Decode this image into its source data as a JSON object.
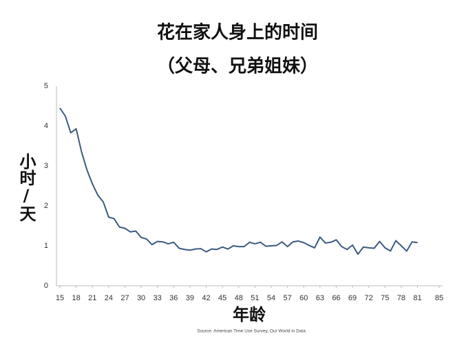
{
  "chart_data": {
    "type": "line",
    "title": "花在家人身上的时间",
    "subtitle": "（父母、兄弟姐妹）",
    "y_label": "小时/天",
    "x_label": "年龄",
    "source": "Source: American Time Use Survey, Our World in Data",
    "x": [
      15,
      16,
      17,
      18,
      19,
      20,
      21,
      22,
      23,
      24,
      25,
      26,
      27,
      28,
      29,
      30,
      31,
      32,
      33,
      34,
      35,
      36,
      37,
      38,
      39,
      40,
      41,
      42,
      43,
      44,
      45,
      46,
      47,
      48,
      49,
      50,
      51,
      52,
      53,
      54,
      55,
      56,
      57,
      58,
      59,
      60,
      61,
      62,
      63,
      64,
      65,
      66,
      67,
      68,
      69,
      70,
      71,
      72,
      73,
      74,
      75,
      76,
      77,
      78,
      79,
      80,
      81
    ],
    "series": [
      {
        "name": "hours",
        "color": "#3b5a7f",
        "values": [
          4.45,
          4.25,
          3.83,
          3.93,
          3.35,
          2.9,
          2.55,
          2.27,
          2.1,
          1.72,
          1.68,
          1.47,
          1.44,
          1.35,
          1.37,
          1.21,
          1.17,
          1.03,
          1.11,
          1.1,
          1.05,
          1.09,
          0.94,
          0.91,
          0.89,
          0.92,
          0.93,
          0.85,
          0.92,
          0.91,
          0.97,
          0.92,
          1.0,
          0.98,
          0.98,
          1.09,
          1.05,
          1.09,
          0.99,
          1.0,
          1.01,
          1.1,
          0.98,
          1.1,
          1.12,
          1.08,
          1.01,
          0.95,
          1.22,
          1.07,
          1.09,
          1.15,
          0.98,
          0.91,
          1.02,
          0.79,
          0.97,
          0.95,
          0.94,
          1.11,
          0.95,
          0.87,
          1.13,
          1.0,
          0.87,
          1.1,
          1.08
        ]
      }
    ],
    "xlim": [
      15,
      85
    ],
    "xticks": [
      15,
      18,
      21,
      24,
      27,
      30,
      33,
      36,
      39,
      42,
      45,
      48,
      51,
      54,
      57,
      60,
      63,
      66,
      69,
      72,
      75,
      78,
      81,
      85
    ],
    "ylim": [
      0,
      5
    ],
    "yticks": [
      0,
      1,
      2,
      3,
      4,
      5
    ],
    "grid": false
  }
}
